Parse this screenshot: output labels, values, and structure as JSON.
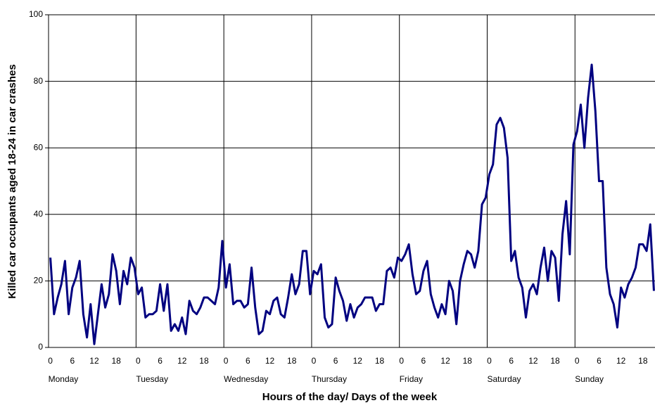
{
  "chart_data": {
    "type": "line",
    "y_label": "Killed car occupants aged 18-24 in car crashes",
    "x_label": "Hours of the day/ Days of the week",
    "day_labels": [
      "Monday",
      "Tuesday",
      "Wednesday",
      "Thursday",
      "Friday",
      "Saturday",
      "Sunday"
    ],
    "x": [
      0,
      1,
      2,
      3,
      4,
      5,
      6,
      7,
      8,
      9,
      10,
      11,
      12,
      13,
      14,
      15,
      16,
      17,
      18,
      19,
      20,
      21,
      22,
      23,
      24,
      25,
      26,
      27,
      28,
      29,
      30,
      31,
      32,
      33,
      34,
      35,
      36,
      37,
      38,
      39,
      40,
      41,
      42,
      43,
      44,
      45,
      46,
      47,
      48,
      49,
      50,
      51,
      52,
      53,
      54,
      55,
      56,
      57,
      58,
      59,
      60,
      61,
      62,
      63,
      64,
      65,
      66,
      67,
      68,
      69,
      70,
      71,
      72,
      73,
      74,
      75,
      76,
      77,
      78,
      79,
      80,
      81,
      82,
      83,
      84,
      85,
      86,
      87,
      88,
      89,
      90,
      91,
      92,
      93,
      94,
      95,
      96,
      97,
      98,
      99,
      100,
      101,
      102,
      103,
      104,
      105,
      106,
      107,
      108,
      109,
      110,
      111,
      112,
      113,
      114,
      115,
      116,
      117,
      118,
      119,
      120,
      121,
      122,
      123,
      124,
      125,
      126,
      127,
      128,
      129,
      130,
      131,
      132,
      133,
      134,
      135,
      136,
      137,
      138,
      139,
      140,
      141,
      142,
      143,
      144,
      145,
      146,
      147,
      148,
      149,
      150,
      151,
      152,
      153,
      154,
      155,
      156,
      157,
      158,
      159,
      160,
      161,
      162,
      163,
      164,
      165
    ],
    "series": [
      {
        "color": "#000080",
        "values": [
          27,
          10,
          15,
          19,
          26,
          10,
          18,
          21,
          26,
          10,
          3,
          13,
          1,
          10,
          19,
          12,
          16,
          28,
          23,
          13,
          23,
          19,
          27,
          24,
          16,
          18,
          9,
          10,
          10,
          11,
          19,
          11,
          19,
          5,
          7,
          5,
          9,
          4,
          14,
          11,
          10,
          12,
          15,
          15,
          14,
          13,
          18,
          32,
          18,
          25,
          13,
          14,
          14,
          12,
          13,
          24,
          12,
          4,
          5,
          11,
          10,
          14,
          15,
          10,
          9,
          15,
          22,
          16,
          19,
          29,
          29,
          16,
          23,
          22,
          25,
          9,
          6,
          7,
          21,
          17,
          14,
          8,
          13,
          9,
          12,
          13,
          15,
          15,
          15,
          11,
          13,
          13,
          23,
          24,
          21,
          27,
          26,
          28,
          31,
          22,
          16,
          17,
          23,
          26,
          16,
          12,
          9,
          13,
          10,
          20,
          17,
          7,
          20,
          25,
          29,
          28,
          24,
          29,
          43,
          45,
          52,
          55,
          67,
          69,
          66,
          57,
          26,
          29,
          21,
          18,
          9,
          17,
          19,
          16,
          24,
          30,
          20,
          29,
          27,
          14,
          34,
          44,
          28,
          61,
          65,
          73,
          60,
          75,
          85,
          71,
          50,
          50,
          24,
          16,
          13,
          6,
          18,
          15,
          19,
          21,
          24,
          31,
          31,
          29,
          37,
          17
        ]
      }
    ],
    "xlim": [
      -0.5,
      165.3
    ],
    "xticks": [
      0,
      6,
      12,
      18,
      {
        "value": 24,
        "label": "0"
      },
      {
        "value": 30,
        "label": "6"
      },
      {
        "value": 36,
        "label": "12"
      },
      {
        "value": 42,
        "label": "18"
      },
      {
        "value": 48,
        "label": "0"
      },
      {
        "value": 54,
        "label": "6"
      },
      {
        "value": 60,
        "label": "12"
      },
      {
        "value": 66,
        "label": "18"
      },
      {
        "value": 72,
        "label": "0"
      },
      {
        "value": 78,
        "label": "6"
      },
      {
        "value": 84,
        "label": "12"
      },
      {
        "value": 90,
        "label": "18"
      },
      {
        "value": 96,
        "label": "0"
      },
      {
        "value": 102,
        "label": "6"
      },
      {
        "value": 108,
        "label": "12"
      },
      {
        "value": 114,
        "label": "18"
      },
      {
        "value": 120,
        "label": "0"
      },
      {
        "value": 126,
        "label": "6"
      },
      {
        "value": 132,
        "label": "12"
      },
      {
        "value": 138,
        "label": "18"
      },
      {
        "value": 144,
        "label": "0"
      },
      {
        "value": 150,
        "label": "6"
      },
      {
        "value": 156,
        "label": "12"
      },
      {
        "value": 162,
        "label": "18"
      }
    ],
    "ylim": [
      0,
      100
    ],
    "yticks": [
      0,
      20,
      40,
      60,
      80,
      100
    ],
    "grid": true
  }
}
